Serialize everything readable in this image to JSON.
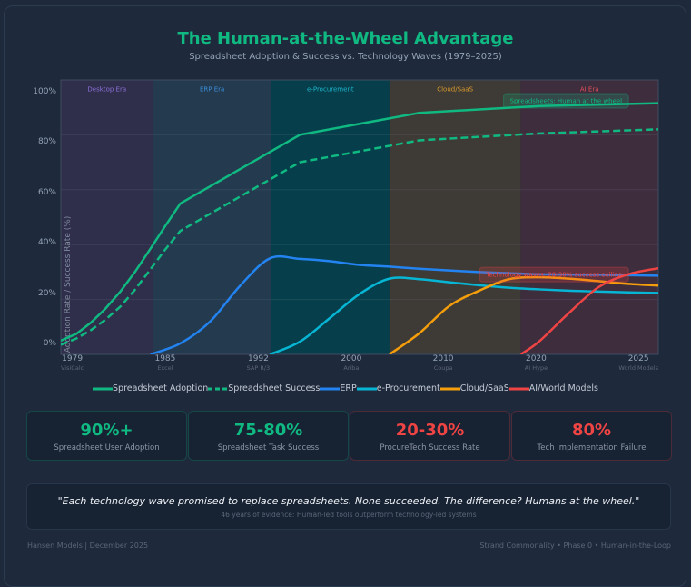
{
  "header": {
    "title": "The Human-at-the-Wheel Advantage",
    "subtitle": "Spreadsheet Adoption & Success vs. Technology Waves (1979–2025)"
  },
  "chart_data": {
    "type": "line",
    "title": "The Human-at-the-Wheel Advantage",
    "subtitle": "Spreadsheet Adoption & Success vs. Technology Waves (1979–2025)",
    "xlabel": "",
    "ylabel": "Adoption Rate / Success Rate (%)",
    "x_range": [
      1979,
      2025
    ],
    "ylim": [
      0,
      100
    ],
    "grid": true,
    "grid_values": [
      20,
      40,
      60,
      80
    ],
    "legend_position": "bottom",
    "y_ticks": [
      "100%",
      "80%",
      "60%",
      "40%",
      "20%",
      "0%"
    ],
    "x_ticks": [
      {
        "year": "1979",
        "sub": "VisiCalc"
      },
      {
        "year": "1985",
        "sub": "Excel"
      },
      {
        "year": "1992",
        "sub": "SAP R/3"
      },
      {
        "year": "2000",
        "sub": "Ariba"
      },
      {
        "year": "2010",
        "sub": "Coupa"
      },
      {
        "year": "2020",
        "sub": "AI Hype"
      },
      {
        "year": "2025",
        "sub": "World Models"
      }
    ],
    "eras": [
      {
        "label": "Desktop Era",
        "start": 1979,
        "end": 1986.1,
        "color": "#2f2f4b",
        "label_color": "#8b6fd8"
      },
      {
        "label": "ERP Era",
        "start": 1986.1,
        "end": 1995.2,
        "color": "#233a4f",
        "label_color": "#3b8fdb"
      },
      {
        "label": "e-Procurement",
        "start": 1995.2,
        "end": 2004.3,
        "color": "#063f4b",
        "label_color": "#1fb5cc"
      },
      {
        "label": "Cloud/SaaS",
        "start": 2004.3,
        "end": 2014.4,
        "color": "#3e3a36",
        "label_color": "#d99a2b"
      },
      {
        "label": "AI Era",
        "start": 2014.4,
        "end": 2025,
        "color": "#3e2d3d",
        "label_color": "#e0505a"
      }
    ],
    "series": [
      {
        "name": "Spreadsheet Adoption",
        "color": "#10b981",
        "dash": false,
        "curve": "linear",
        "points": [
          [
            1979,
            5
          ],
          [
            1980.2,
            7.5
          ],
          [
            1981.3,
            11.5
          ],
          [
            1982.4,
            16.5
          ],
          [
            1983.6,
            23
          ],
          [
            1984.7,
            30
          ],
          [
            1985.9,
            38.5
          ],
          [
            1987,
            46.5
          ],
          [
            1988.2,
            55
          ],
          [
            1997.4,
            80
          ],
          [
            2006.6,
            88
          ],
          [
            2015.8,
            90.5
          ],
          [
            2025,
            91.5
          ]
        ]
      },
      {
        "name": "Spreadsheet Success",
        "color": "#10b981",
        "dash": true,
        "curve": "linear",
        "points": [
          [
            1979,
            3.5
          ],
          [
            1980.2,
            5.8
          ],
          [
            1981.3,
            8.8
          ],
          [
            1982.4,
            12.5
          ],
          [
            1983.6,
            17.5
          ],
          [
            1984.7,
            23.5
          ],
          [
            1985.9,
            31
          ],
          [
            1987,
            38
          ],
          [
            1988.2,
            45
          ],
          [
            1997.4,
            70
          ],
          [
            2006.6,
            78
          ],
          [
            2015.8,
            80.5
          ],
          [
            2025,
            82
          ]
        ]
      },
      {
        "name": "ERP",
        "color": "#2383f0",
        "dash": false,
        "curve": "smooth",
        "points": [
          [
            1985.9,
            0
          ],
          [
            1988.2,
            4
          ],
          [
            1990.5,
            12
          ],
          [
            1992.8,
            25
          ],
          [
            1995.1,
            35
          ],
          [
            1997.4,
            34.8
          ],
          [
            1999.7,
            34
          ],
          [
            2002,
            32.6
          ],
          [
            2004.3,
            32
          ],
          [
            2006.6,
            31.2
          ],
          [
            2008.9,
            30.6
          ],
          [
            2011.2,
            30
          ],
          [
            2013.5,
            29.6
          ],
          [
            2015.8,
            29.2
          ],
          [
            2020.4,
            29
          ],
          [
            2025,
            28.7
          ]
        ]
      },
      {
        "name": "e-Procurement",
        "color": "#06b6d4",
        "dash": false,
        "curve": "smooth",
        "points": [
          [
            1995.1,
            0
          ],
          [
            1997.4,
            4.6
          ],
          [
            1999.7,
            13.2
          ],
          [
            2002,
            22
          ],
          [
            2004.3,
            27.6
          ],
          [
            2006.6,
            27.4
          ],
          [
            2008.9,
            26.3
          ],
          [
            2011.2,
            25.2
          ],
          [
            2013.5,
            24.3
          ],
          [
            2015.8,
            23.7
          ],
          [
            2018.1,
            23.2
          ],
          [
            2020.4,
            22.9
          ],
          [
            2022.7,
            22.6
          ],
          [
            2025,
            22.4
          ]
        ]
      },
      {
        "name": "Cloud/SaaS",
        "color": "#f59e0b",
        "dash": false,
        "curve": "smooth",
        "points": [
          [
            2004.3,
            0
          ],
          [
            2006.6,
            7.7
          ],
          [
            2008.9,
            17.6
          ],
          [
            2011.2,
            23.2
          ],
          [
            2013.5,
            27.4
          ],
          [
            2015.8,
            28.1
          ],
          [
            2018.1,
            27.6
          ],
          [
            2020.4,
            26.7
          ],
          [
            2022.7,
            25.7
          ],
          [
            2025,
            25.1
          ]
        ]
      },
      {
        "name": "AI/World Models",
        "color": "#ef4444",
        "dash": false,
        "curve": "smooth",
        "points": [
          [
            2014.4,
            0
          ],
          [
            2015.8,
            4.6
          ],
          [
            2018.1,
            15
          ],
          [
            2020.4,
            24.5
          ],
          [
            2022.7,
            29.2
          ],
          [
            2025,
            31.4
          ]
        ]
      }
    ],
    "annotations": [
      {
        "text": "Spreadsheets: Human at the wheel",
        "color": "#10b981",
        "x": 2022.7,
        "y": 92.4,
        "align": "right"
      },
      {
        "text": "Technology waves: 20-30% success ceiling",
        "color": "#ef4444",
        "x": 2022.7,
        "y": 29.1,
        "align": "right"
      }
    ]
  },
  "stats": [
    {
      "value": "90%+",
      "label": "Spreadsheet User Adoption",
      "color": "#10b981"
    },
    {
      "value": "75-80%",
      "label": "Spreadsheet Task Success",
      "color": "#10b981"
    },
    {
      "value": "20-30%",
      "label": "ProcureTech Success Rate",
      "color": "#ef4444"
    },
    {
      "value": "80%",
      "label": "Tech Implementation Failure",
      "color": "#ef4444"
    }
  ],
  "quote": {
    "text": "\"Each technology wave promised to replace spreadsheets. None succeeded. The difference? Humans at the wheel.\"",
    "caption": "46 years of evidence: Human-led tools outperform technology-led systems"
  },
  "footer": {
    "left": "Hansen Models | December 2025",
    "right": "Strand Commonality • Phase 0 • Human-in-the-Loop"
  }
}
